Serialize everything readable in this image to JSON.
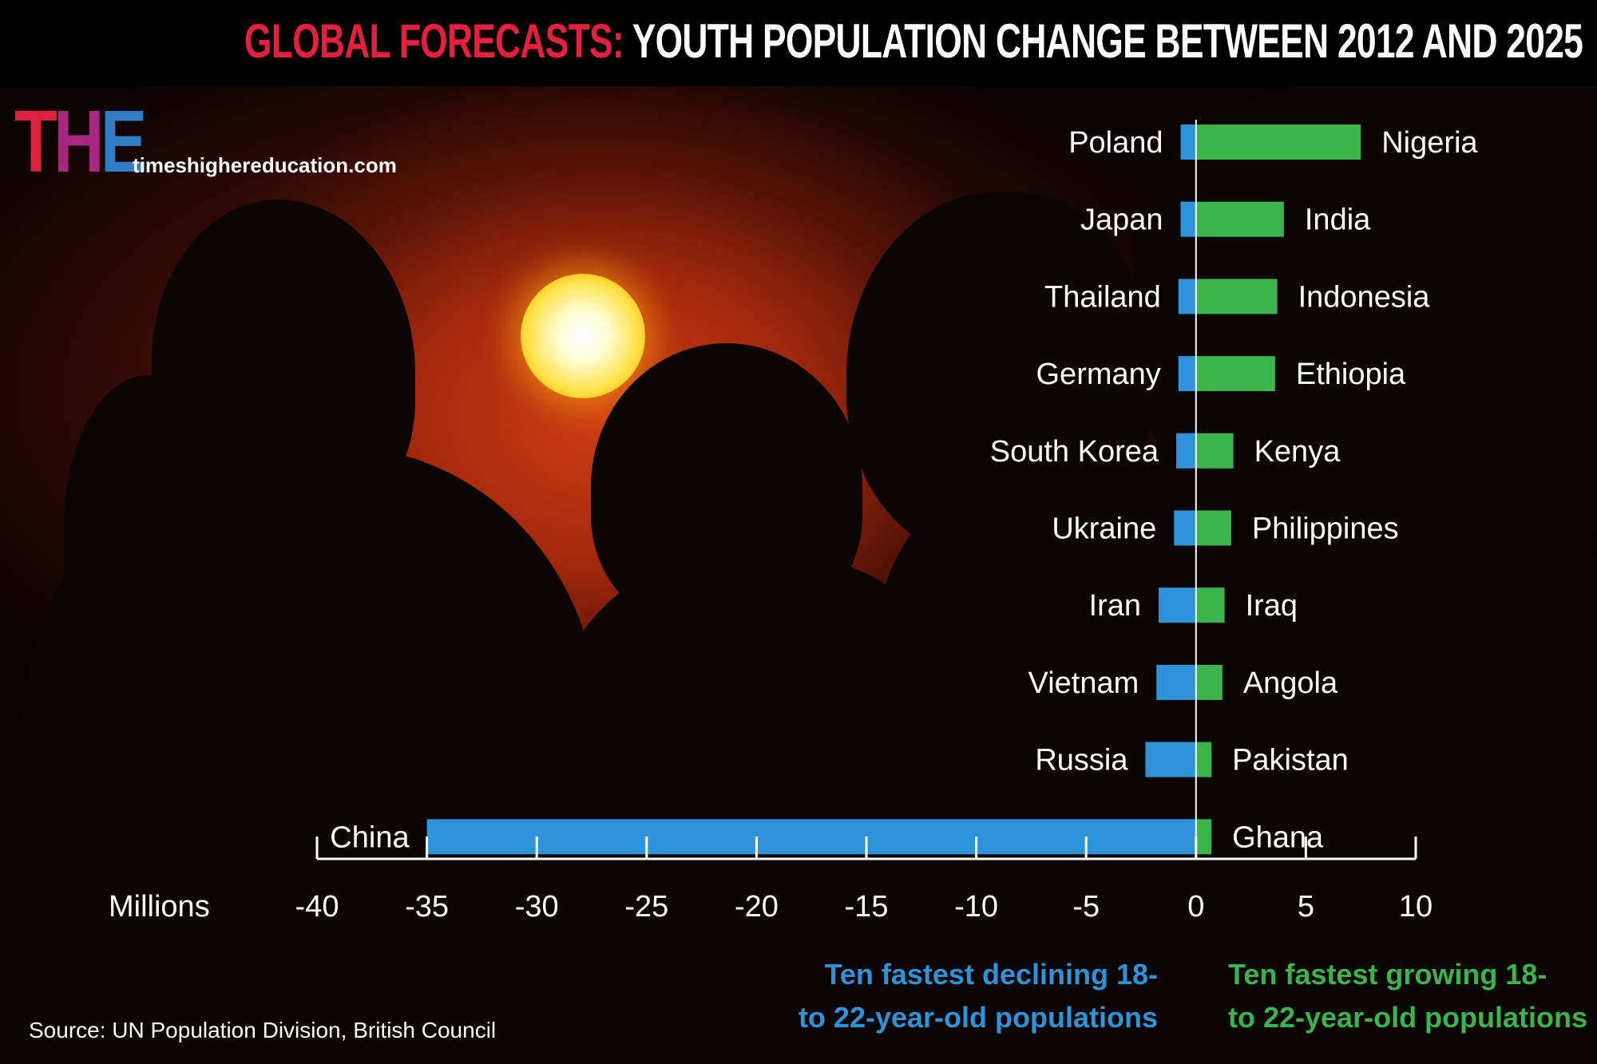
{
  "header": {
    "title_red": "GLOBAL FORECASTS:",
    "title_white": " YOUTH POPULATION CHANGE BETWEEN 2012 AND 2025"
  },
  "brand": {
    "logo_t": "T",
    "logo_h": "H",
    "logo_e": "E",
    "website": "timeshighereducation.com"
  },
  "chart_data": {
    "type": "bar",
    "orientation": "horizontal",
    "title": "YOUTH POPULATION CHANGE BETWEEN 2012 AND 2025",
    "xlabel": "Millions",
    "xlim": [
      -40,
      10
    ],
    "xticks": [
      -40,
      -35,
      -30,
      -25,
      -20,
      -15,
      -10,
      -5,
      0,
      5,
      10
    ],
    "grid": false,
    "legend": "none",
    "series": [
      {
        "name": "Ten fastest declining 18- to 22-year-old populations",
        "color": "#2e94d9",
        "categories": [
          "Poland",
          "Japan",
          "Thailand",
          "Germany",
          "South Korea",
          "Ukraine",
          "Iran",
          "Vietnam",
          "Russia",
          "China"
        ],
        "values": [
          -0.7,
          -0.7,
          -0.8,
          -0.8,
          -0.9,
          -1.0,
          -1.7,
          -1.8,
          -2.3,
          -35.0
        ]
      },
      {
        "name": "Ten fastest growing 18- to 22-year-old populations",
        "color": "#3bb54a",
        "categories": [
          "Nigeria",
          "India",
          "Indonesia",
          "Ethiopia",
          "Kenya",
          "Philippines",
          "Iraq",
          "Angola",
          "Pakistan",
          "Ghana"
        ],
        "values": [
          7.5,
          4.0,
          3.7,
          3.6,
          1.7,
          1.6,
          1.3,
          1.2,
          0.7,
          0.7
        ]
      }
    ]
  },
  "captions": {
    "declining_line1": "Ten fastest declining 18-",
    "declining_line2": "to 22-year-old populations",
    "growing_line1": "Ten fastest growing 18-",
    "growing_line2": "to 22-year-old populations"
  },
  "source": "Source: UN Population Division, British Council"
}
